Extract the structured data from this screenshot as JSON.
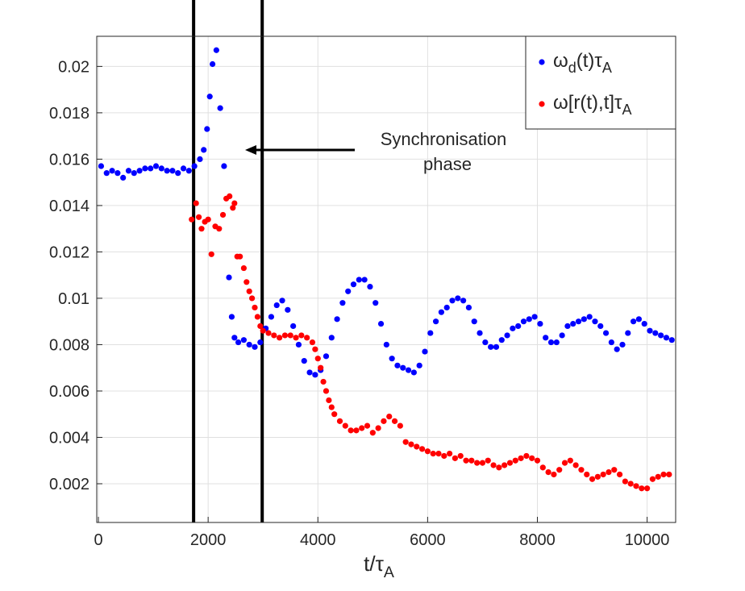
{
  "chart_data": {
    "type": "scatter",
    "xlabel": [
      {
        "text": "t/τ"
      },
      {
        "text": "A",
        "sub": true
      }
    ],
    "annotation": [
      "Synchronisation",
      "phase"
    ],
    "xlim": [
      -30,
      10520
    ],
    "ylim": [
      0.00033,
      0.0213
    ],
    "xticks": [
      0,
      2000,
      4000,
      6000,
      8000,
      10000
    ],
    "yticks": [
      0.002,
      0.004,
      0.006,
      0.008,
      0.01,
      0.012,
      0.014,
      0.016,
      0.018,
      0.02
    ],
    "grid": true,
    "legend": "upper right",
    "vlines": [
      1735,
      2985
    ],
    "series": [
      {
        "name": [
          {
            "text": "ω"
          },
          {
            "text": "d",
            "sub": true
          },
          {
            "text": "(t)τ"
          },
          {
            "text": "A",
            "sub": true
          }
        ],
        "color": "#0000ff",
        "x": [
          50,
          150,
          250,
          350,
          450,
          550,
          650,
          750,
          850,
          950,
          1050,
          1150,
          1250,
          1350,
          1450,
          1550,
          1650,
          1750,
          1850,
          1920,
          1980,
          2030,
          2080,
          2150,
          2220,
          2290,
          2380,
          2430,
          2480,
          2550,
          2650,
          2750,
          2850,
          2950,
          3050,
          3150,
          3250,
          3350,
          3450,
          3550,
          3650,
          3750,
          3850,
          3950,
          4050,
          4150,
          4250,
          4350,
          4450,
          4550,
          4650,
          4750,
          4850,
          4950,
          5050,
          5150,
          5250,
          5350,
          5450,
          5550,
          5650,
          5750,
          5850,
          5950,
          6050,
          6150,
          6250,
          6350,
          6450,
          6550,
          6650,
          6750,
          6850,
          6950,
          7050,
          7150,
          7250,
          7350,
          7450,
          7550,
          7650,
          7750,
          7850,
          7950,
          8050,
          8150,
          8250,
          8350,
          8450,
          8550,
          8650,
          8750,
          8850,
          8950,
          9050,
          9150,
          9250,
          9350,
          9450,
          9550,
          9650,
          9750,
          9850,
          9950,
          10050,
          10150,
          10250,
          10350,
          10450
        ],
        "values": [
          0.0157,
          0.0154,
          0.0155,
          0.0154,
          0.0152,
          0.0155,
          0.0154,
          0.0155,
          0.0156,
          0.0156,
          0.0157,
          0.0156,
          0.0155,
          0.0155,
          0.0154,
          0.0156,
          0.0155,
          0.0157,
          0.016,
          0.0164,
          0.0173,
          0.0187,
          0.0201,
          0.0207,
          0.0182,
          0.0157,
          0.0109,
          0.0092,
          0.0083,
          0.0081,
          0.0082,
          0.008,
          0.0079,
          0.0081,
          0.0087,
          0.0092,
          0.0097,
          0.0099,
          0.0095,
          0.0088,
          0.008,
          0.0073,
          0.0068,
          0.0067,
          0.0069,
          0.0075,
          0.0083,
          0.0091,
          0.0098,
          0.0103,
          0.0106,
          0.0108,
          0.0108,
          0.0105,
          0.0098,
          0.0089,
          0.008,
          0.0074,
          0.0071,
          0.007,
          0.0069,
          0.0068,
          0.0071,
          0.0077,
          0.0085,
          0.009,
          0.0094,
          0.0096,
          0.0099,
          0.01,
          0.0099,
          0.0096,
          0.009,
          0.0085,
          0.0081,
          0.0079,
          0.0079,
          0.0082,
          0.0084,
          0.0087,
          0.0088,
          0.009,
          0.0091,
          0.0092,
          0.0089,
          0.0083,
          0.0081,
          0.0081,
          0.0084,
          0.0088,
          0.0089,
          0.009,
          0.0091,
          0.0092,
          0.009,
          0.0088,
          0.0085,
          0.0081,
          0.0078,
          0.008,
          0.0085,
          0.009,
          0.0091,
          0.0089,
          0.0086,
          0.0085,
          0.0084,
          0.0083,
          0.0082
        ]
      },
      {
        "name": [
          {
            "text": "ω[r(t),t]τ"
          },
          {
            "text": "A",
            "sub": true
          }
        ],
        "color": "#ff0000",
        "x": [
          1700,
          1780,
          1830,
          1880,
          1940,
          2000,
          2060,
          2130,
          2200,
          2270,
          2330,
          2390,
          2450,
          2480,
          2530,
          2580,
          2650,
          2700,
          2750,
          2800,
          2850,
          2900,
          2950,
          3000,
          3100,
          3200,
          3300,
          3400,
          3500,
          3600,
          3700,
          3800,
          3900,
          3950,
          4000,
          4050,
          4100,
          4150,
          4200,
          4250,
          4300,
          4400,
          4500,
          4600,
          4700,
          4800,
          4900,
          5000,
          5100,
          5200,
          5300,
          5400,
          5500,
          5600,
          5700,
          5800,
          5900,
          6000,
          6100,
          6200,
          6300,
          6400,
          6500,
          6600,
          6700,
          6800,
          6900,
          7000,
          7100,
          7200,
          7300,
          7400,
          7500,
          7600,
          7700,
          7800,
          7900,
          8000,
          8100,
          8200,
          8300,
          8400,
          8500,
          8600,
          8700,
          8800,
          8900,
          9000,
          9100,
          9200,
          9300,
          9400,
          9500,
          9600,
          9700,
          9800,
          9900,
          10000,
          10100,
          10200,
          10300,
          10400
        ],
        "values": [
          0.0134,
          0.0141,
          0.0135,
          0.013,
          0.0133,
          0.0134,
          0.0119,
          0.0131,
          0.013,
          0.0136,
          0.0143,
          0.0144,
          0.0139,
          0.0141,
          0.0118,
          0.0118,
          0.0113,
          0.0107,
          0.0103,
          0.01,
          0.0096,
          0.0092,
          0.0088,
          0.0086,
          0.0085,
          0.0084,
          0.0083,
          0.0084,
          0.0084,
          0.0083,
          0.0084,
          0.0083,
          0.0081,
          0.0078,
          0.0074,
          0.007,
          0.0064,
          0.006,
          0.0056,
          0.0053,
          0.005,
          0.0047,
          0.0045,
          0.0043,
          0.0043,
          0.0044,
          0.0045,
          0.0042,
          0.0044,
          0.0047,
          0.0049,
          0.0047,
          0.0045,
          0.0038,
          0.0037,
          0.0036,
          0.0035,
          0.0034,
          0.0033,
          0.0033,
          0.0032,
          0.0033,
          0.0031,
          0.0032,
          0.003,
          0.003,
          0.0029,
          0.0029,
          0.003,
          0.0028,
          0.0027,
          0.0028,
          0.0029,
          0.003,
          0.0031,
          0.0032,
          0.0031,
          0.003,
          0.0027,
          0.0025,
          0.0024,
          0.0026,
          0.0029,
          0.003,
          0.0028,
          0.0026,
          0.0024,
          0.0022,
          0.0023,
          0.0024,
          0.0025,
          0.0026,
          0.0024,
          0.0021,
          0.002,
          0.0019,
          0.0018,
          0.0018,
          0.0022,
          0.0023,
          0.0024,
          0.0024
        ]
      }
    ]
  }
}
